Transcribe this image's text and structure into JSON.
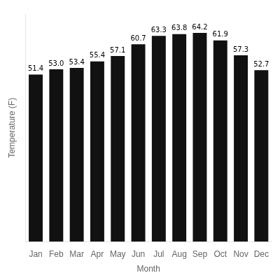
{
  "chart_data": {
    "type": "bar",
    "x_label": "Month",
    "y_label": "Temperature (F)",
    "categories": [
      "Jan",
      "Feb",
      "Mar",
      "Apr",
      "May",
      "Jun",
      "Jul",
      "Aug",
      "Sep",
      "Oct",
      "Nov",
      "Dec"
    ],
    "values": [
      51.4,
      53.0,
      53.4,
      55.4,
      57.1,
      60.7,
      63.3,
      63.8,
      64.2,
      61.9,
      57.3,
      52.7
    ],
    "value_labels": [
      "51.4",
      "53.0",
      "53.4",
      "55.4",
      "57.1",
      "60.7",
      "63.3",
      "63.8",
      "64.2",
      "61.9",
      "57.3",
      "52.7"
    ],
    "color": "#111111",
    "ylim": [
      0,
      70
    ],
    "grid": false,
    "data_labels": true,
    "tick_labels": "x"
  }
}
